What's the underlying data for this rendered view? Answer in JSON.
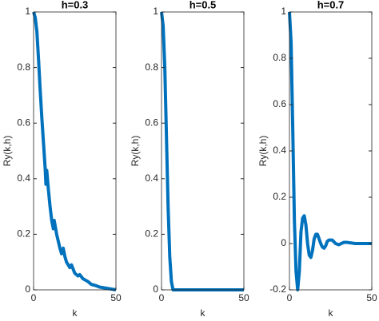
{
  "chart_data": [
    {
      "type": "line",
      "title": "h=0.3",
      "xlabel": "k",
      "ylabel": "Ry(k,h)",
      "color": "#0072bd",
      "x": [
        0,
        1,
        2,
        3,
        4,
        5,
        6,
        7,
        7.5,
        8,
        9,
        10,
        11,
        12,
        12.5,
        14,
        16,
        17,
        18,
        19,
        20,
        22,
        23,
        25,
        27,
        28,
        30,
        33,
        35,
        38,
        40,
        45,
        50
      ],
      "values": [
        1,
        0.98,
        0.93,
        0.83,
        0.72,
        0.62,
        0.53,
        0.44,
        0.38,
        0.43,
        0.36,
        0.3,
        0.25,
        0.22,
        0.25,
        0.2,
        0.15,
        0.13,
        0.15,
        0.12,
        0.1,
        0.08,
        0.09,
        0.06,
        0.05,
        0.055,
        0.04,
        0.03,
        0.02,
        0.015,
        0.01,
        0.005,
        0
      ],
      "xlim": [
        0,
        50
      ],
      "xticks": [
        0,
        50
      ],
      "ylim": [
        0,
        1
      ],
      "yticks": [
        0,
        0.2,
        0.4,
        0.6,
        0.8,
        1
      ]
    },
    {
      "type": "line",
      "title": "h=0.5",
      "xlabel": "k",
      "ylabel": "Ry(k,h)",
      "color": "#0072bd",
      "x": [
        0,
        1,
        2,
        3,
        4,
        5,
        6,
        7,
        50
      ],
      "values": [
        1,
        0.95,
        0.8,
        0.55,
        0.3,
        0.12,
        0.03,
        0,
        0
      ],
      "xlim": [
        0,
        50
      ],
      "xticks": [
        0,
        50
      ],
      "ylim": [
        0,
        1
      ],
      "yticks": [
        0,
        0.2,
        0.4,
        0.6,
        0.8,
        1
      ]
    },
    {
      "type": "line",
      "title": "h=0.7",
      "xlabel": "k",
      "ylabel": "Ry(k,h)",
      "color": "#0072bd",
      "x": [
        0,
        1,
        2,
        3,
        4,
        5,
        6,
        7,
        8,
        9,
        10,
        11,
        12,
        13,
        14,
        15,
        16,
        17,
        18,
        19,
        20,
        21,
        22,
        23,
        24,
        26,
        28,
        30,
        33,
        35,
        40,
        50
      ],
      "values": [
        1,
        0.87,
        0.5,
        0.1,
        -0.12,
        -0.2,
        -0.12,
        0.05,
        0.11,
        0.12,
        0.08,
        0,
        -0.05,
        -0.06,
        -0.03,
        0.02,
        0.04,
        0.04,
        0.02,
        0,
        -0.015,
        -0.02,
        -0.01,
        0.01,
        0.015,
        0.015,
        0,
        -0.005,
        0.005,
        0.005,
        0,
        0
      ],
      "xlim": [
        0,
        50
      ],
      "xticks": [
        0,
        50
      ],
      "ylim": [
        -0.2,
        1
      ],
      "yticks": [
        -0.2,
        0,
        0.2,
        0.4,
        0.6,
        0.8,
        1
      ]
    }
  ]
}
